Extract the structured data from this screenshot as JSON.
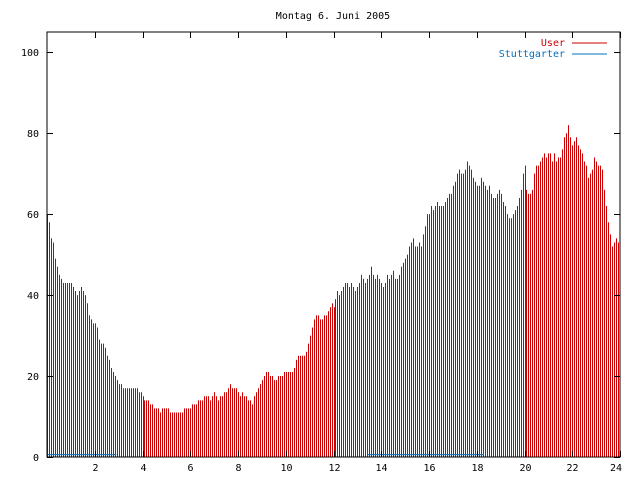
{
  "chart_data": {
    "type": "bar",
    "title": "Montag 6. Juni 2005",
    "xlabel": "",
    "ylabel": "",
    "xlim": [
      0,
      24
    ],
    "ylim": [
      0,
      105
    ],
    "x_ticks": [
      2,
      4,
      6,
      8,
      10,
      12,
      14,
      16,
      18,
      20,
      22,
      24
    ],
    "y_ticks": [
      0,
      20,
      40,
      60,
      80,
      100
    ],
    "grid": false,
    "legend_position": "top-right",
    "bin_minutes": 5,
    "series": [
      {
        "name": "User",
        "color": "#cc0000",
        "values": [
          60,
          58,
          54,
          53,
          49,
          47,
          45,
          44,
          43,
          43,
          43,
          43,
          43,
          42,
          41,
          40,
          41,
          42,
          41,
          40,
          38,
          35,
          34,
          33,
          33,
          32,
          29,
          28,
          28,
          27,
          25,
          24,
          22,
          21,
          20,
          19,
          18,
          18,
          17,
          17,
          17,
          17,
          17,
          17,
          17,
          17,
          16,
          16,
          15,
          14,
          14,
          14,
          13,
          13,
          12,
          12,
          12,
          11,
          12,
          12,
          12,
          12,
          11,
          11,
          11,
          11,
          11,
          11,
          11,
          12,
          12,
          12,
          12,
          13,
          13,
          13,
          14,
          14,
          14,
          15,
          15,
          15,
          14,
          15,
          16,
          15,
          14,
          15,
          15,
          16,
          16,
          17,
          18,
          17,
          17,
          17,
          16,
          15,
          16,
          15,
          15,
          14,
          14,
          13,
          15,
          16,
          17,
          18,
          19,
          20,
          21,
          21,
          20,
          20,
          19,
          19,
          20,
          20,
          20,
          21,
          21,
          21,
          21,
          21,
          22,
          24,
          25,
          25,
          25,
          25,
          26,
          28,
          30,
          32,
          34,
          35,
          35,
          34,
          34,
          35,
          35,
          36,
          37,
          38,
          37,
          39,
          41,
          40,
          41,
          42,
          43,
          43,
          42,
          43,
          42,
          41,
          42,
          43,
          45,
          44,
          43,
          44,
          45,
          47,
          45,
          44,
          45,
          44,
          43,
          42,
          43,
          45,
          44,
          45,
          46,
          44,
          44,
          45,
          47,
          48,
          49,
          50,
          52,
          53,
          54,
          52,
          52,
          53,
          52,
          55,
          57,
          60,
          60,
          62,
          61,
          62,
          63,
          62,
          62,
          62,
          63,
          64,
          65,
          65,
          67,
          68,
          70,
          71,
          70,
          70,
          71,
          73,
          72,
          71,
          69,
          68,
          67,
          67,
          69,
          68,
          67,
          66,
          67,
          65,
          64,
          64,
          65,
          66,
          65,
          63,
          62,
          60,
          59,
          59,
          60,
          61,
          62,
          64,
          66,
          70,
          72,
          66,
          65,
          65,
          66,
          70,
          72,
          72,
          73,
          74,
          75,
          74,
          75,
          75,
          73,
          75,
          73,
          74,
          74,
          76,
          79,
          80,
          82,
          79,
          77,
          78,
          79,
          77,
          76,
          75,
          73,
          72,
          69,
          70,
          71,
          74,
          73,
          72,
          72,
          71,
          66,
          62,
          58,
          55,
          52,
          53,
          54,
          53
        ]
      },
      {
        "name": "Stuttgarter",
        "color": "#0070c0",
        "segments": [
          {
            "x_start": 0,
            "x_end": 2.9,
            "y": 0.6
          },
          {
            "x_start": 13.4,
            "x_end": 18.3,
            "y": 0.6
          }
        ]
      }
    ]
  }
}
